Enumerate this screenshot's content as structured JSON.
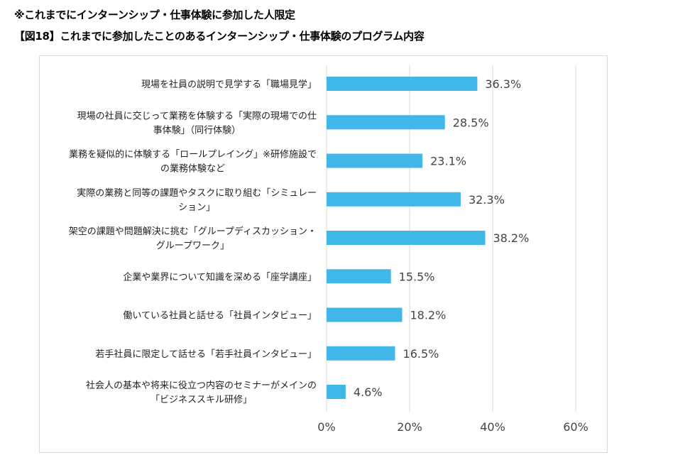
{
  "header": {
    "note": "※これまでにインターンシップ・仕事体験に参加した人限定",
    "title": "【図18】これまでに参加したことのあるインターンシップ・仕事体験のプログラム内容"
  },
  "chart_data": {
    "type": "bar",
    "orientation": "horizontal",
    "title": "【図18】これまでに参加したことのあるインターンシップ・仕事体験のプログラム内容",
    "categories": [
      [
        "現場を社員の説明で見学する「職場見学」"
      ],
      [
        "現場の社員に交じって業務を体験する「実際の現場での仕",
        "事体験」（同行体験）"
      ],
      [
        "業務を疑似的に体験する「ロールプレイング」※研修施設で",
        "の業務体験など"
      ],
      [
        "実際の業務と同等の課題やタスクに取り組む「シミュレー",
        "ション」"
      ],
      [
        "架空の課題や問題解決に挑む「グループディスカッション・",
        "グループワーク」"
      ],
      [
        "企業や業界について知識を深める「座学講座」"
      ],
      [
        "働いている社員と話せる「社員インタビュー」"
      ],
      [
        "若手社員に限定して話せる「若手社員インタビュー」"
      ],
      [
        "社会人の基本や将来に役立つ内容のセミナーがメインの",
        "「ビジネススキル研修」"
      ]
    ],
    "values": [
      36.3,
      28.5,
      23.1,
      32.3,
      38.2,
      15.5,
      18.2,
      16.5,
      4.6
    ],
    "data_labels": [
      "36.3%",
      "28.5%",
      "23.1%",
      "32.3%",
      "38.2%",
      "15.5%",
      "18.2%",
      "16.5%",
      "4.6%"
    ],
    "xlim": [
      0,
      60
    ],
    "xticks": [
      0,
      20,
      40,
      60
    ],
    "xtick_labels": [
      "0%",
      "20%",
      "40%",
      "60%"
    ],
    "grid": true,
    "bar_color": "#41b6e8",
    "grid_color": "#d9d9d9",
    "legend": "none"
  }
}
